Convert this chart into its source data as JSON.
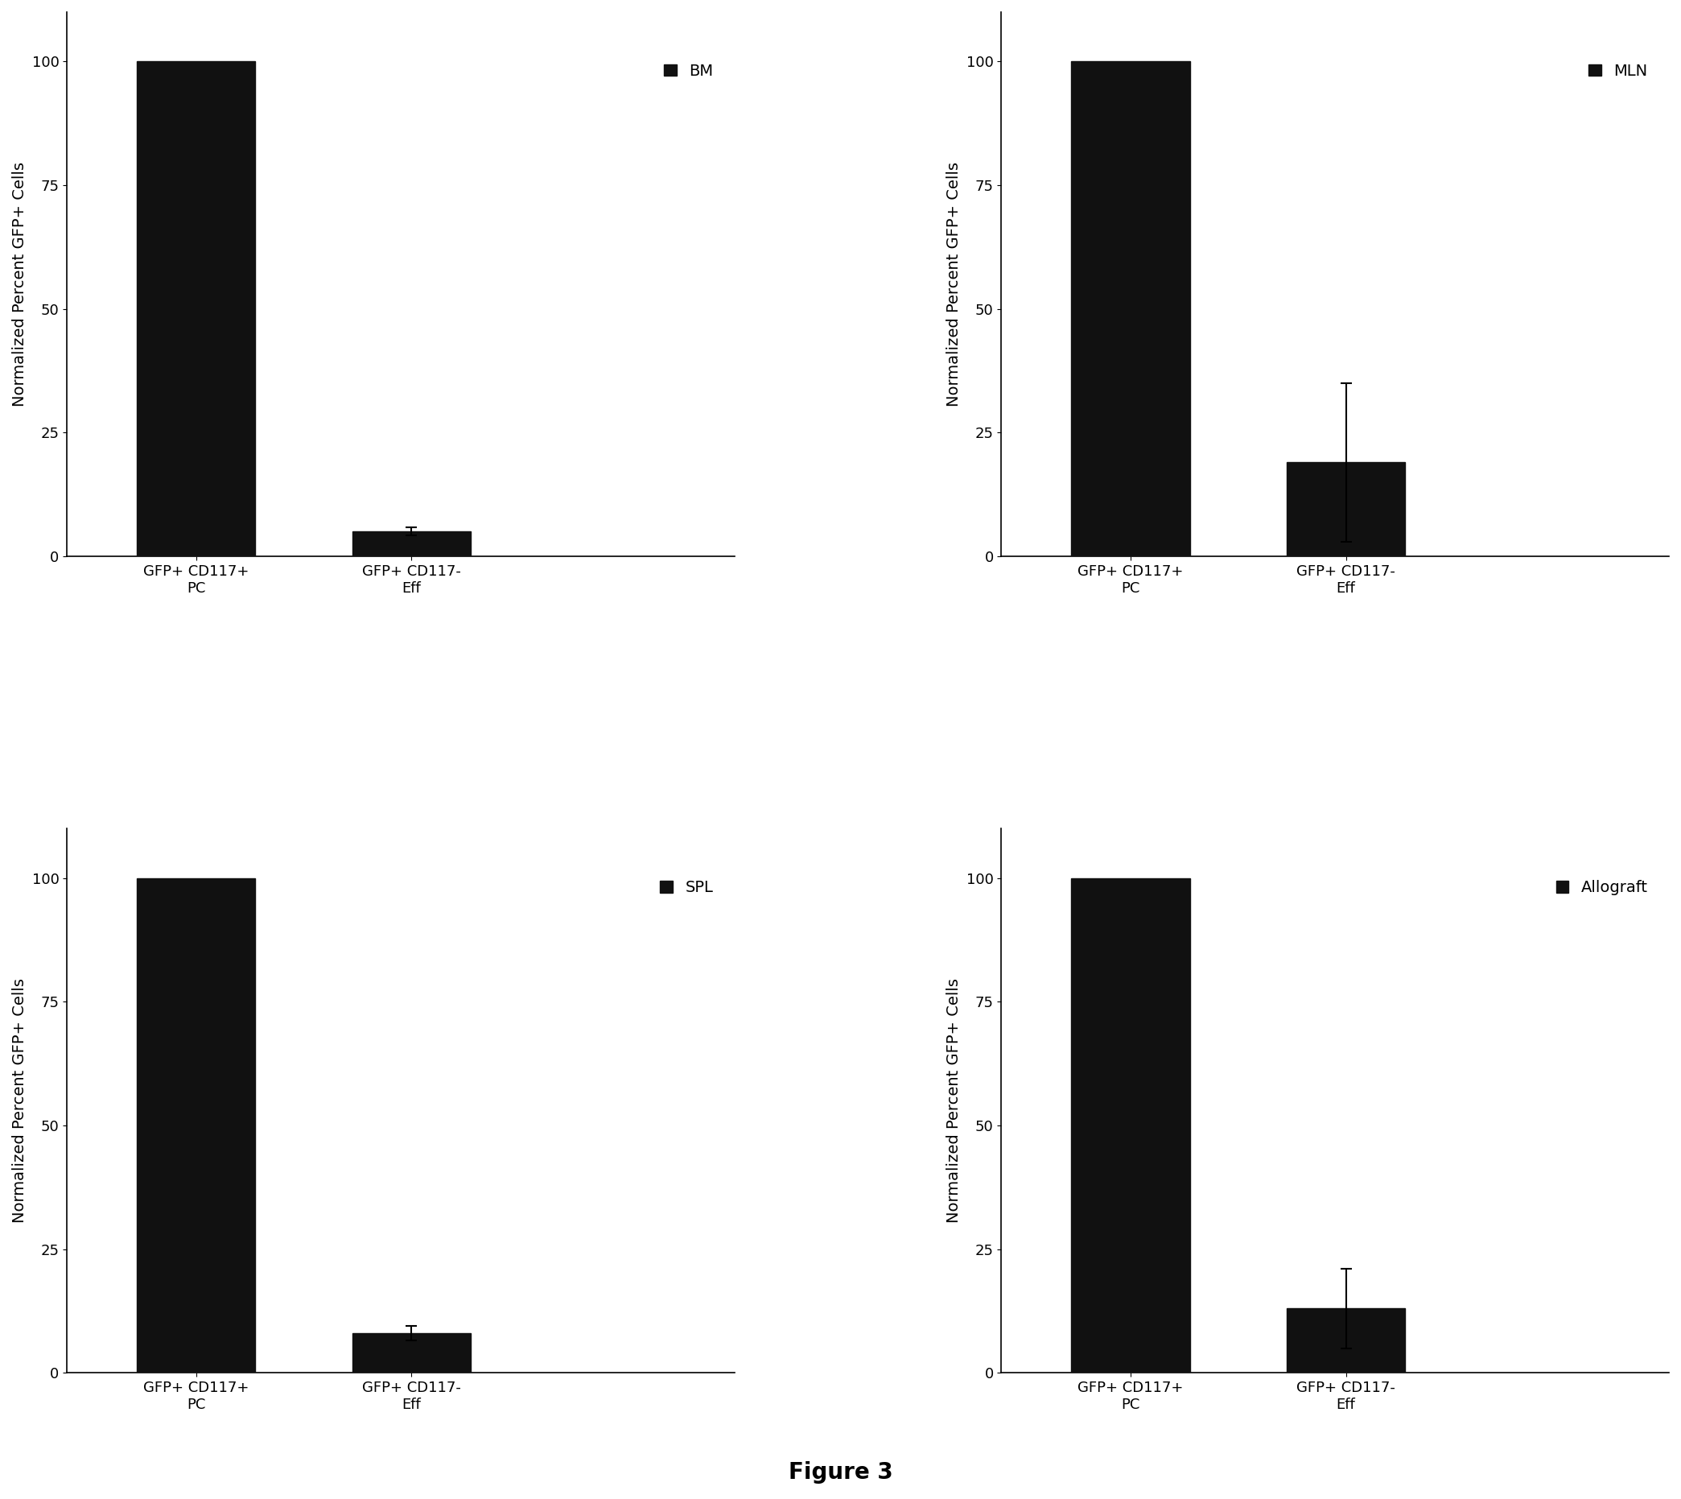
{
  "subplots": [
    {
      "label": "BM",
      "categories": [
        "GFP+ CD117+\nPC",
        "GFP+ CD117-\nEff"
      ],
      "values": [
        100,
        5
      ],
      "errors": [
        0,
        0.8
      ],
      "ylim": [
        0,
        110
      ],
      "yticks": [
        0,
        25,
        50,
        75,
        100
      ]
    },
    {
      "label": "MLN",
      "categories": [
        "GFP+ CD117+\nPC",
        "GFP+ CD117-\nEff"
      ],
      "values": [
        100,
        19
      ],
      "errors": [
        0,
        16
      ],
      "ylim": [
        0,
        110
      ],
      "yticks": [
        0,
        25,
        50,
        75,
        100
      ]
    },
    {
      "label": "SPL",
      "categories": [
        "GFP+ CD117+\nPC",
        "GFP+ CD117-\nEff"
      ],
      "values": [
        100,
        8
      ],
      "errors": [
        0,
        1.5
      ],
      "ylim": [
        0,
        110
      ],
      "yticks": [
        0,
        25,
        50,
        75,
        100
      ]
    },
    {
      "label": "Allograft",
      "categories": [
        "GFP+ CD117+\nPC",
        "GFP+ CD117-\nEff"
      ],
      "values": [
        100,
        13
      ],
      "errors": [
        0,
        8
      ],
      "ylim": [
        0,
        110
      ],
      "yticks": [
        0,
        25,
        50,
        75,
        100
      ]
    }
  ],
  "bar_color": "#111111",
  "bar_width": 0.55,
  "ylabel": "Normalized Percent GFP+ Cells",
  "figure_title": "Figure 3",
  "background_color": "#ffffff",
  "title_fontsize": 20,
  "label_fontsize": 14,
  "tick_fontsize": 13,
  "legend_fontsize": 14,
  "errorbar_capsize": 5,
  "errorbar_linewidth": 1.5
}
